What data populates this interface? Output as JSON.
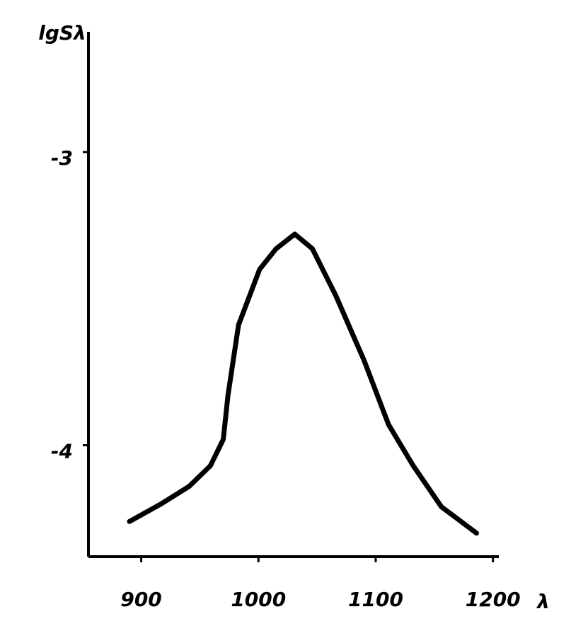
{
  "chart_data": {
    "type": "line",
    "y_label": "lgSλ",
    "x_label": "λ",
    "x": [
      890,
      917,
      941,
      959,
      970,
      974,
      983,
      1001,
      1015,
      1031,
      1046,
      1066,
      1090,
      1111,
      1132,
      1156,
      1186
    ],
    "series": [
      {
        "color": "#000000",
        "values": [
          -4.26,
          -4.2,
          -4.14,
          -4.07,
          -3.98,
          -3.83,
          -3.59,
          -3.4,
          -3.33,
          -3.28,
          -3.33,
          -3.49,
          -3.71,
          -3.93,
          -4.07,
          -4.21,
          -4.3
        ]
      }
    ],
    "xlim": [
      855,
      1205
    ],
    "ylim": [
      -4.38,
      -2.59
    ],
    "xticks": [
      900,
      1000,
      1100,
      1200
    ],
    "yticks": [
      -3,
      -4
    ]
  }
}
